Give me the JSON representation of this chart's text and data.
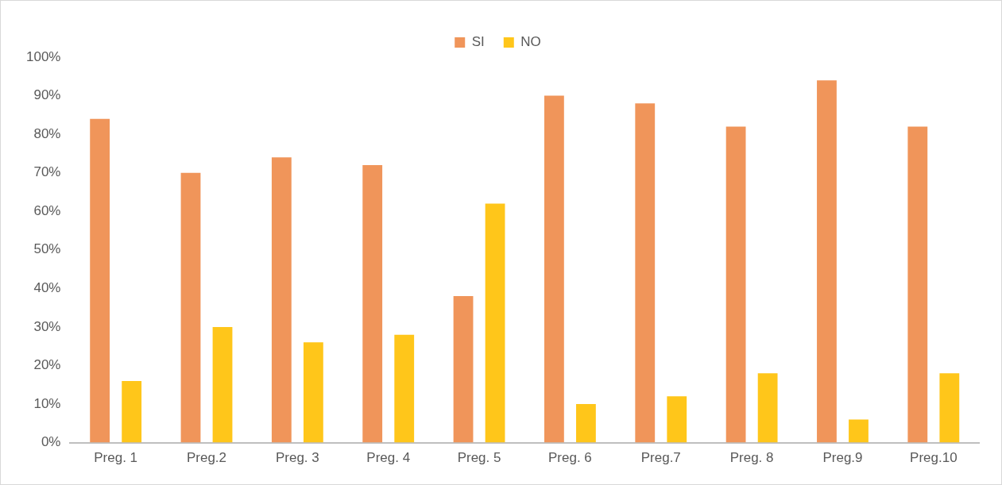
{
  "chart_data": {
    "type": "bar",
    "categories": [
      "Preg. 1",
      "Preg.2",
      "Preg. 3",
      "Preg. 4",
      "Preg. 5",
      "Preg. 6",
      "Preg.7",
      "Preg. 8",
      "Preg.9",
      "Preg.10"
    ],
    "series": [
      {
        "name": "SI",
        "color": "#f0955a",
        "values": [
          84,
          70,
          74,
          72,
          38,
          90,
          88,
          82,
          94,
          82
        ]
      },
      {
        "name": "NO",
        "color": "#ffc61a",
        "values": [
          16,
          30,
          26,
          28,
          62,
          10,
          12,
          18,
          6,
          18
        ]
      }
    ],
    "ylim": [
      0,
      100
    ],
    "yticks": [
      {
        "value": 0,
        "label": "0%"
      },
      {
        "value": 10,
        "label": "10%"
      },
      {
        "value": 20,
        "label": "20%"
      },
      {
        "value": 30,
        "label": "30%"
      },
      {
        "value": 40,
        "label": "40%"
      },
      {
        "value": 50,
        "label": "50%"
      },
      {
        "value": 60,
        "label": "60%"
      },
      {
        "value": 70,
        "label": "70%"
      },
      {
        "value": 80,
        "label": "80%"
      },
      {
        "value": 90,
        "label": "90%"
      },
      {
        "value": 100,
        "label": "100%"
      }
    ],
    "grid": false,
    "legend": "top"
  }
}
